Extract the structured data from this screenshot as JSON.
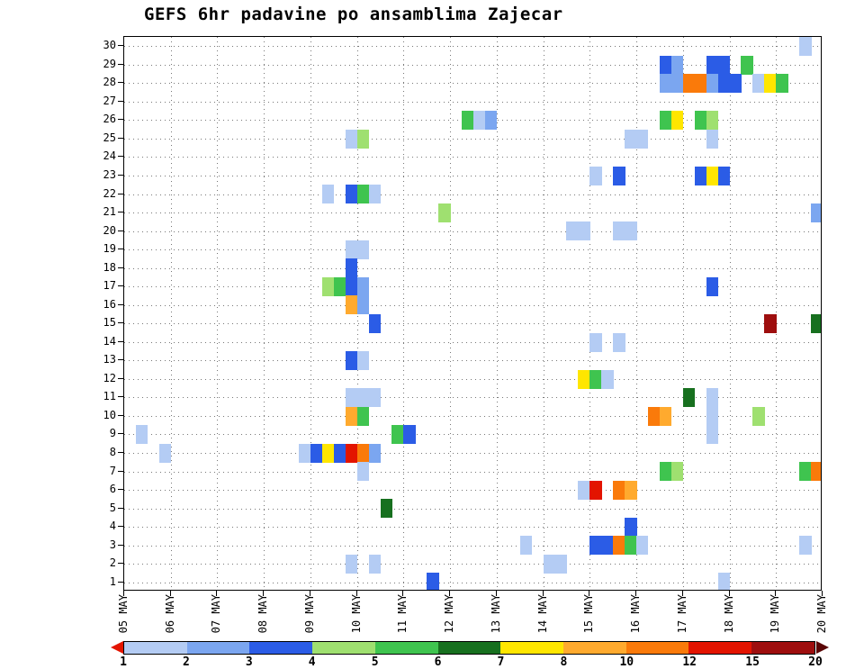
{
  "chart_data": {
    "type": "heatmap",
    "title": "GEFS 6hr padavine po ansamblima Zajecar",
    "x_axis": {
      "labels": [
        "05 MAY",
        "06 MAY",
        "07 MAY",
        "08 MAY",
        "09 MAY",
        "10 MAY",
        "11 MAY",
        "12 MAY",
        "13 MAY",
        "14 MAY",
        "15 MAY",
        "16 MAY",
        "17 MAY",
        "18 MAY",
        "19 MAY",
        "20 MAY"
      ],
      "step_hours": 6,
      "steps_per_day": 4,
      "total_steps": 60
    },
    "y_axis": {
      "name": "ensemble-member",
      "min": 1,
      "max": 30,
      "ticks_top_to_bottom": [
        30,
        29,
        28,
        27,
        26,
        25,
        24,
        23,
        22,
        21,
        20,
        19,
        18,
        17,
        16,
        15,
        14,
        13,
        12,
        11,
        10,
        9,
        8,
        7,
        6,
        5,
        4,
        3,
        2,
        1
      ]
    },
    "legend": {
      "tick_labels": [
        "1",
        "2",
        "3",
        "4",
        "5",
        "6",
        "7",
        "8",
        "10",
        "12",
        "15",
        "20"
      ],
      "levels": [
        {
          "range": [
            1,
            2
          ],
          "color": "#b4ccf4"
        },
        {
          "range": [
            2,
            3
          ],
          "color": "#7ba6f0"
        },
        {
          "range": [
            3,
            4
          ],
          "color": "#2b5ce6"
        },
        {
          "range": [
            4,
            5
          ],
          "color": "#9fe070"
        },
        {
          "range": [
            5,
            6
          ],
          "color": "#3fc44f"
        },
        {
          "range": [
            6,
            7
          ],
          "color": "#17701f"
        },
        {
          "range": [
            7,
            8
          ],
          "color": "#ffe600"
        },
        {
          "range": [
            8,
            10
          ],
          "color": "#ffaa2e"
        },
        {
          "range": [
            10,
            12
          ],
          "color": "#fa7a0a"
        },
        {
          "range": [
            12,
            15
          ],
          "color": "#e31400"
        },
        {
          "range": [
            15,
            20
          ],
          "color": "#9e0e0e"
        }
      ],
      "left_cap_color": "#e31400",
      "right_cap_color": "#5a0505"
    },
    "cell_encoding": [
      "ensemble_member",
      "time_step_6h_from_05_MAY_00",
      "color_level_1_to_11"
    ],
    "cells": [
      [
        30,
        58,
        1
      ],
      [
        29,
        46,
        3
      ],
      [
        29,
        47,
        2
      ],
      [
        29,
        50,
        3
      ],
      [
        29,
        51,
        3
      ],
      [
        29,
        53,
        5
      ],
      [
        28,
        46,
        2
      ],
      [
        28,
        47,
        2
      ],
      [
        28,
        48,
        9
      ],
      [
        28,
        49,
        9
      ],
      [
        28,
        50,
        2
      ],
      [
        28,
        51,
        3
      ],
      [
        28,
        52,
        3
      ],
      [
        28,
        54,
        1
      ],
      [
        28,
        55,
        7
      ],
      [
        28,
        56,
        5
      ],
      [
        26,
        29,
        5
      ],
      [
        26,
        30,
        1
      ],
      [
        26,
        31,
        2
      ],
      [
        26,
        46,
        5
      ],
      [
        26,
        47,
        7
      ],
      [
        26,
        49,
        5
      ],
      [
        26,
        50,
        4
      ],
      [
        25,
        19,
        1
      ],
      [
        25,
        20,
        4
      ],
      [
        25,
        43,
        1
      ],
      [
        25,
        44,
        1
      ],
      [
        25,
        50,
        1
      ],
      [
        23,
        40,
        1
      ],
      [
        23,
        42,
        3
      ],
      [
        23,
        49,
        3
      ],
      [
        23,
        50,
        7
      ],
      [
        23,
        51,
        3
      ],
      [
        22,
        17,
        1
      ],
      [
        22,
        19,
        3
      ],
      [
        22,
        20,
        5
      ],
      [
        22,
        21,
        1
      ],
      [
        21,
        27,
        4
      ],
      [
        21,
        59,
        2
      ],
      [
        20,
        38,
        1
      ],
      [
        20,
        39,
        1
      ],
      [
        20,
        42,
        1
      ],
      [
        20,
        43,
        1
      ],
      [
        19,
        19,
        1
      ],
      [
        19,
        20,
        1
      ],
      [
        18,
        19,
        3
      ],
      [
        17,
        17,
        4
      ],
      [
        17,
        18,
        5
      ],
      [
        17,
        19,
        3
      ],
      [
        17,
        20,
        2
      ],
      [
        17,
        50,
        3
      ],
      [
        16,
        19,
        8
      ],
      [
        16,
        20,
        2
      ],
      [
        15,
        21,
        3
      ],
      [
        15,
        55,
        11
      ],
      [
        15,
        59,
        6
      ],
      [
        14,
        40,
        1
      ],
      [
        14,
        42,
        1
      ],
      [
        13,
        19,
        3
      ],
      [
        13,
        20,
        1
      ],
      [
        12,
        39,
        7
      ],
      [
        12,
        40,
        5
      ],
      [
        12,
        41,
        1
      ],
      [
        11,
        19,
        1
      ],
      [
        11,
        20,
        1
      ],
      [
        11,
        21,
        1
      ],
      [
        11,
        48,
        6
      ],
      [
        11,
        50,
        1
      ],
      [
        10,
        19,
        8
      ],
      [
        10,
        20,
        5
      ],
      [
        10,
        45,
        9
      ],
      [
        10,
        46,
        8
      ],
      [
        10,
        50,
        1
      ],
      [
        10,
        54,
        4
      ],
      [
        9,
        1,
        1
      ],
      [
        9,
        23,
        5
      ],
      [
        9,
        24,
        3
      ],
      [
        9,
        50,
        1
      ],
      [
        8,
        3,
        1
      ],
      [
        8,
        15,
        1
      ],
      [
        8,
        16,
        3
      ],
      [
        8,
        17,
        7
      ],
      [
        8,
        18,
        3
      ],
      [
        8,
        19,
        10
      ],
      [
        8,
        20,
        9
      ],
      [
        8,
        21,
        2
      ],
      [
        7,
        20,
        1
      ],
      [
        7,
        46,
        5
      ],
      [
        7,
        47,
        4
      ],
      [
        7,
        58,
        5
      ],
      [
        7,
        59,
        9
      ],
      [
        6,
        39,
        1
      ],
      [
        6,
        40,
        10
      ],
      [
        6,
        42,
        9
      ],
      [
        6,
        43,
        8
      ],
      [
        5,
        22,
        6
      ],
      [
        4,
        43,
        3
      ],
      [
        3,
        34,
        1
      ],
      [
        3,
        40,
        3
      ],
      [
        3,
        41,
        3
      ],
      [
        3,
        42,
        9
      ],
      [
        3,
        43,
        5
      ],
      [
        3,
        44,
        1
      ],
      [
        3,
        58,
        1
      ],
      [
        2,
        19,
        1
      ],
      [
        2,
        21,
        1
      ],
      [
        2,
        36,
        1
      ],
      [
        2,
        37,
        1
      ],
      [
        1,
        26,
        3
      ],
      [
        1,
        51,
        1
      ]
    ]
  }
}
